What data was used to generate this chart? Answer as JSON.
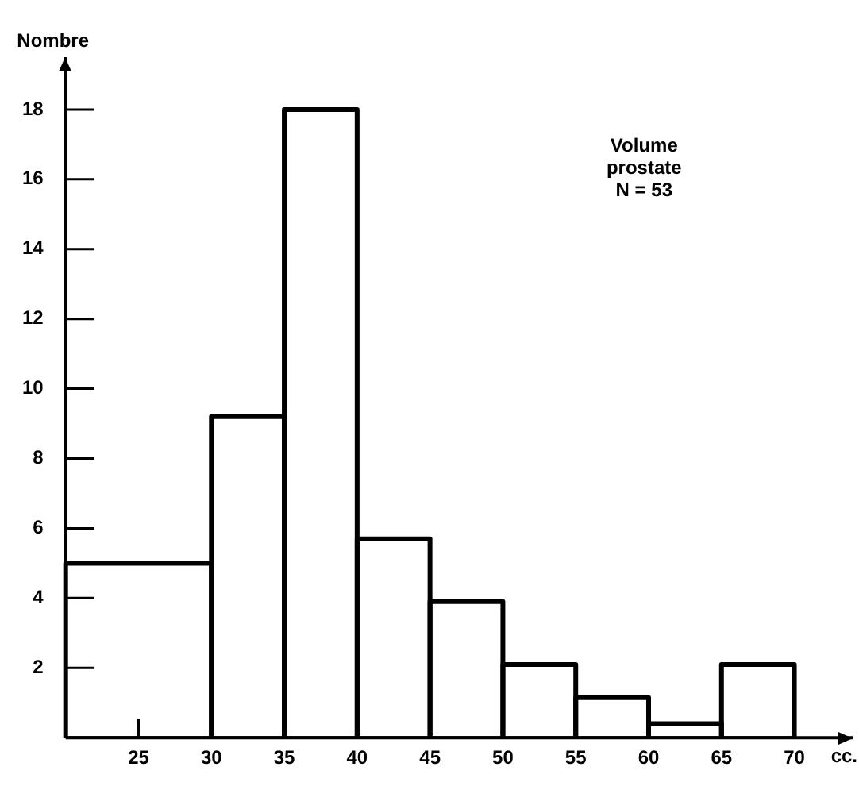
{
  "chart_data": {
    "type": "histogram",
    "xlabel": "cc.",
    "ylabel": "Nombre",
    "annotations": [
      "Volume\nprostate\nN = 53"
    ],
    "bins": [
      20,
      30,
      35,
      40,
      45,
      50,
      55,
      60,
      65,
      70
    ],
    "values": [
      5,
      9.2,
      18,
      5.7,
      3.9,
      2.1,
      1.15,
      0.4,
      2.1
    ],
    "color": "#000000",
    "xlim": [
      20,
      74
    ],
    "xticks": [
      25,
      30,
      35,
      40,
      45,
      50,
      55,
      60,
      65,
      70
    ],
    "ylim": [
      0,
      19.5
    ],
    "yticks": [
      2,
      4,
      6,
      8,
      10,
      12,
      14,
      16,
      18
    ],
    "grid": false,
    "legend": false
  }
}
